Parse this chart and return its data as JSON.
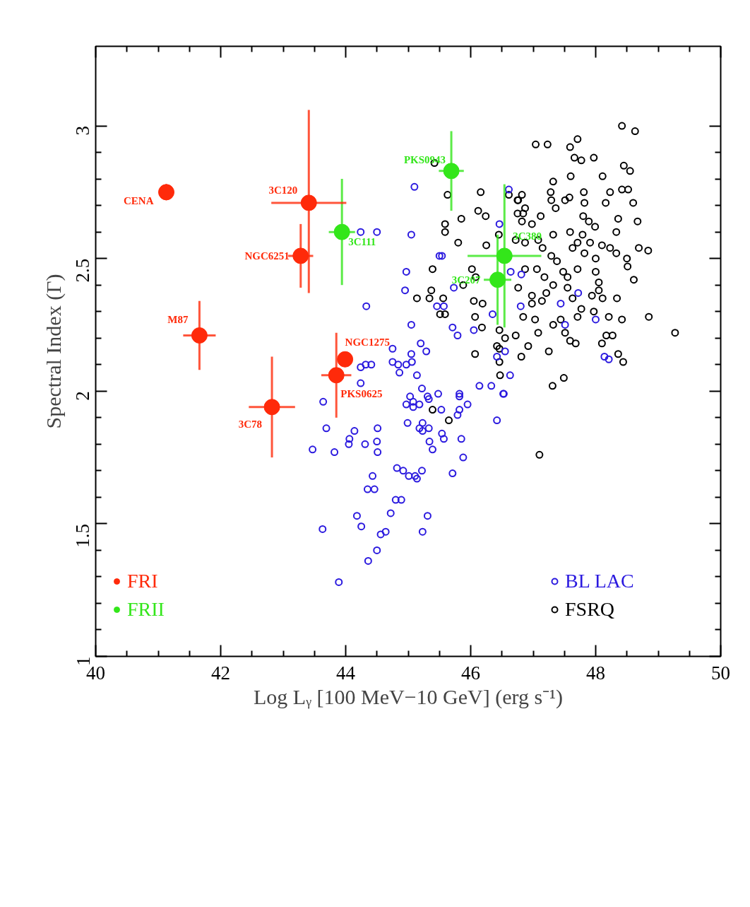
{
  "chart_data": {
    "type": "scatter",
    "xlabel": "Log Lᵧ [100 MeV−10 GeV] (erg s⁻¹)",
    "ylabel": "Spectral Index (Γ)",
    "xlim": [
      40,
      50
    ],
    "ylim": [
      1,
      3.3
    ],
    "xticks": [
      40,
      42,
      44,
      46,
      48,
      50
    ],
    "yticks": [
      1,
      1.5,
      2,
      2.5,
      3
    ],
    "marker": "circle",
    "legend": "bottom",
    "series": [
      {
        "name": "FRI",
        "color": "#ff2a0a",
        "x": [
          41.13,
          43.41,
          43.28,
          41.66,
          43.99,
          43.85,
          42.82
        ],
        "values": [
          2.75,
          2.71,
          2.51,
          2.21,
          2.12,
          2.06,
          1.94
        ],
        "errors": [
          0.03,
          [
            2.37,
            3.06
          ],
          0.12,
          0.13,
          null,
          0.16,
          0.19
        ],
        "xerrors": [
          null,
          0.6,
          0.2,
          0.26,
          null,
          0.24,
          0.37
        ]
      },
      {
        "name": "FRII",
        "color": "#33e61a",
        "x": [
          43.94,
          45.69,
          46.54,
          46.43
        ],
        "values": [
          2.6,
          2.83,
          2.51,
          2.42
        ],
        "errors": [
          0.2,
          0.15,
          0.27,
          0.17
        ],
        "xerrors": [
          0.21,
          0.2,
          0.59,
          0.22
        ]
      },
      {
        "name": "BL LAC",
        "color": "#2b1adf",
        "x": [
          45.1,
          44.24,
          44.5,
          45.05,
          45.5,
          45.54,
          44.97,
          44.95,
          45.73,
          44.33,
          45.46,
          45.57,
          45.05,
          45.71,
          45.79,
          46.05,
          46.46,
          46.61,
          46.35,
          46.42,
          46.63,
          46.53,
          46.14,
          46.33,
          44.24,
          44.32,
          44.41,
          44.24,
          44.75,
          44.75,
          44.84,
          44.86,
          44.97,
          45.05,
          45.06,
          45.2,
          45.29,
          45.14,
          45.22,
          45.48,
          45.82,
          45.23,
          45.31,
          45.33,
          45.82,
          45.95,
          45.82,
          45.79,
          46.52,
          46.42,
          45.03,
          45.08,
          44.97,
          45.08,
          45.18,
          45.53,
          44.99,
          45.18,
          45.23,
          45.33,
          45.54,
          45.57,
          45.34,
          45.39,
          45.85,
          45.88,
          45.71,
          45.22,
          44.82,
          44.92,
          45.01,
          45.11,
          45.14,
          44.43,
          44.35,
          44.46,
          44.8,
          44.89,
          44.72,
          45.31,
          44.18,
          44.25,
          44.56,
          44.64,
          45.23,
          44.5,
          44.36,
          43.89,
          43.63,
          43.64,
          43.69,
          44.14,
          44.06,
          44.05,
          44.31,
          44.51,
          44.5,
          44.51,
          43.47,
          43.82,
          46.81,
          46.64,
          46.8,
          47.44,
          47.72,
          47.51,
          48.0,
          48.14,
          48.21,
          46.55
        ],
        "values": [
          2.77,
          2.6,
          2.6,
          2.59,
          2.51,
          2.51,
          2.45,
          2.38,
          2.39,
          2.32,
          2.32,
          2.32,
          2.25,
          2.24,
          2.21,
          2.23,
          2.63,
          2.76,
          2.29,
          2.13,
          2.06,
          1.99,
          2.02,
          2.02,
          2.09,
          2.1,
          2.1,
          2.03,
          2.16,
          2.11,
          2.1,
          2.07,
          2.1,
          2.14,
          2.11,
          2.18,
          2.15,
          2.06,
          2.01,
          1.99,
          1.99,
          1.88,
          1.98,
          1.97,
          1.98,
          1.95,
          1.93,
          1.91,
          1.99,
          1.89,
          1.98,
          1.96,
          1.95,
          1.94,
          1.95,
          1.93,
          1.88,
          1.86,
          1.85,
          1.86,
          1.84,
          1.82,
          1.81,
          1.78,
          1.82,
          1.75,
          1.69,
          1.7,
          1.71,
          1.7,
          1.68,
          1.68,
          1.67,
          1.68,
          1.63,
          1.63,
          1.59,
          1.59,
          1.54,
          1.53,
          1.53,
          1.49,
          1.46,
          1.47,
          1.47,
          1.4,
          1.36,
          1.28,
          1.48,
          1.96,
          1.86,
          1.85,
          1.82,
          1.8,
          1.8,
          1.86,
          1.81,
          1.77,
          1.78,
          1.77,
          2.44,
          2.45,
          2.32,
          2.33,
          2.37,
          2.25,
          2.27,
          2.13,
          2.12,
          2.15
        ]
      },
      {
        "name": "FSRQ",
        "color": "#000000",
        "x": [
          48.42,
          48.63,
          47.04,
          47.23,
          47.59,
          47.71,
          47.66,
          47.77,
          47.97,
          48.45,
          48.55,
          47.6,
          48.11,
          47.32,
          46.82,
          46.76,
          47.28,
          47.29,
          47.36,
          47.58,
          47.51,
          47.81,
          47.82,
          48.16,
          48.23,
          48.42,
          48.52,
          48.6,
          46.75,
          46.87,
          46.98,
          47.12,
          46.82,
          47.8,
          47.89,
          47.99,
          48.36,
          48.67,
          48.33,
          47.32,
          47.59,
          47.79,
          47.08,
          46.72,
          46.87,
          47.15,
          47.71,
          47.63,
          47.91,
          47.82,
          48.1,
          48.23,
          48.33,
          48.5,
          48.51,
          48.69,
          48.84,
          48.61,
          47.29,
          47.38,
          48.0,
          46.87,
          47.06,
          47.18,
          47.48,
          47.71,
          47.55,
          48.0,
          48.05,
          48.05,
          47.94,
          48.11,
          48.34,
          46.76,
          46.98,
          47.21,
          47.32,
          47.55,
          47.63,
          46.98,
          47.14,
          47.77,
          47.97,
          48.21,
          48.42,
          48.85,
          49.27,
          46.84,
          47.03,
          47.32,
          47.44,
          47.71,
          46.72,
          47.08,
          47.51,
          47.59,
          47.68,
          48.17,
          48.27,
          48.1,
          48.36,
          48.44,
          46.92,
          46.81,
          47.25,
          47.49,
          46.55,
          46.46,
          46.46,
          47.31,
          47.1,
          45.42,
          45.63,
          46.16,
          45.85,
          46.24,
          45.59,
          45.59,
          45.8,
          46.12,
          46.25,
          46.45,
          45.39,
          46.02,
          46.08,
          45.88,
          45.14,
          45.34,
          45.56,
          45.51,
          45.59,
          45.37,
          46.05,
          46.19,
          46.07,
          46.18,
          46.46,
          46.07,
          46.42,
          46.47,
          46.61,
          46.75,
          46.84,
          45.39,
          45.65
        ],
        "values": [
          3.0,
          2.98,
          2.93,
          2.93,
          2.92,
          2.95,
          2.88,
          2.87,
          2.88,
          2.85,
          2.83,
          2.81,
          2.81,
          2.79,
          2.74,
          2.72,
          2.75,
          2.72,
          2.69,
          2.73,
          2.72,
          2.75,
          2.71,
          2.71,
          2.75,
          2.76,
          2.76,
          2.71,
          2.67,
          2.69,
          2.63,
          2.66,
          2.64,
          2.66,
          2.64,
          2.62,
          2.65,
          2.64,
          2.6,
          2.59,
          2.6,
          2.59,
          2.57,
          2.57,
          2.56,
          2.54,
          2.56,
          2.54,
          2.56,
          2.52,
          2.55,
          2.54,
          2.52,
          2.5,
          2.47,
          2.54,
          2.53,
          2.42,
          2.51,
          2.49,
          2.5,
          2.46,
          2.46,
          2.43,
          2.45,
          2.46,
          2.43,
          2.45,
          2.41,
          2.38,
          2.36,
          2.35,
          2.35,
          2.39,
          2.36,
          2.37,
          2.4,
          2.39,
          2.35,
          2.33,
          2.34,
          2.31,
          2.3,
          2.28,
          2.27,
          2.28,
          2.22,
          2.28,
          2.27,
          2.25,
          2.27,
          2.28,
          2.21,
          2.22,
          2.22,
          2.19,
          2.18,
          2.21,
          2.21,
          2.18,
          2.14,
          2.11,
          2.17,
          2.13,
          2.15,
          2.05,
          2.2,
          2.11,
          2.16,
          2.02,
          1.76,
          2.86,
          2.74,
          2.75,
          2.65,
          2.66,
          2.63,
          2.6,
          2.56,
          2.68,
          2.55,
          2.59,
          2.46,
          2.46,
          2.43,
          2.4,
          2.35,
          2.35,
          2.35,
          2.29,
          2.29,
          2.38,
          2.34,
          2.33,
          2.28,
          2.24,
          2.23,
          2.14,
          2.17,
          2.06,
          2.74,
          2.72,
          2.67,
          1.93,
          1.89
        ]
      }
    ],
    "annotations": [
      {
        "text": "CENA",
        "x": 41.13,
        "y": 2.75
      },
      {
        "text": "3C120",
        "x": 43.41,
        "y": 2.71
      },
      {
        "text": "NGC6251",
        "x": 43.28,
        "y": 2.51
      },
      {
        "text": "M87",
        "x": 41.66,
        "y": 2.21
      },
      {
        "text": "NGC1275",
        "x": 43.99,
        "y": 2.12
      },
      {
        "text": "PKS0625",
        "x": 43.85,
        "y": 2.06
      },
      {
        "text": "3C78",
        "x": 42.82,
        "y": 1.94
      },
      {
        "text": "3C111",
        "x": 43.94,
        "y": 2.6
      },
      {
        "text": "PKS0943",
        "x": 45.69,
        "y": 2.83
      },
      {
        "text": "3C380",
        "x": 46.54,
        "y": 2.51
      },
      {
        "text": "3C207",
        "x": 46.43,
        "y": 2.42
      }
    ]
  }
}
